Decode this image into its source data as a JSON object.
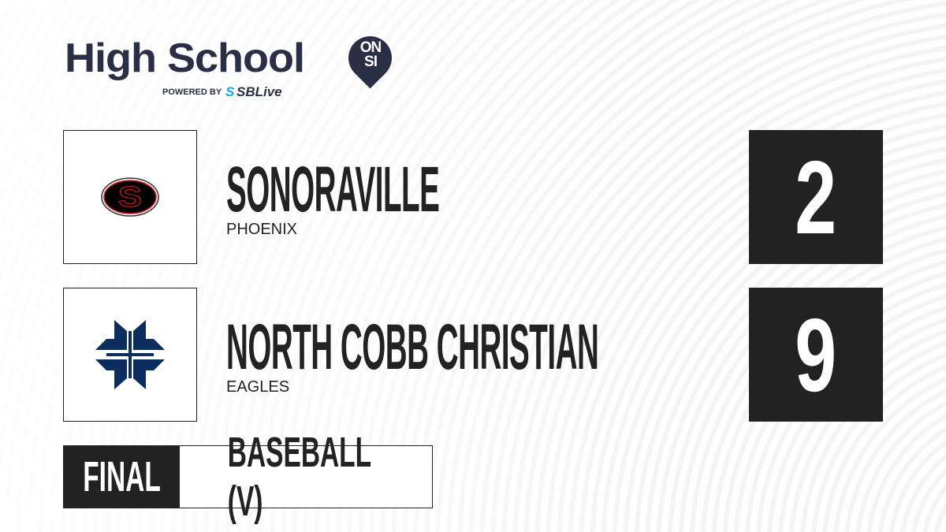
{
  "brand": {
    "title": "High School",
    "badge_line1": "ON",
    "badge_line2": "SI",
    "powered_by": "POWERED BY",
    "partner_prefix": "S",
    "partner": "SBLive"
  },
  "teams": [
    {
      "name": "SONORAVILLE",
      "mascot": "PHOENIX",
      "score": "2",
      "logo": "oval-s-logo",
      "colors": [
        "#000000",
        "#e31b23"
      ]
    },
    {
      "name": "NORTH COBB CHRISTIAN",
      "mascot": "EAGLES",
      "score": "9",
      "logo": "cross-logo",
      "colors": [
        "#0b2e5e"
      ]
    }
  ],
  "game": {
    "status": "FINAL",
    "sport": "BASEBALL (V)"
  }
}
